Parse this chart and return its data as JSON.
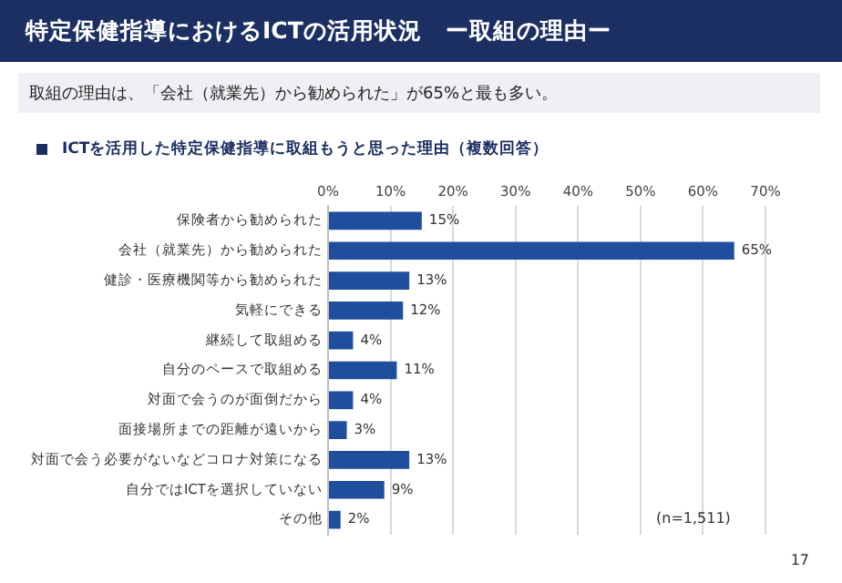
{
  "chart_data": {
    "type": "bar",
    "orientation": "horizontal",
    "title": "特定保健指導におけるICTの活用状況　ー取組の理由ー",
    "subtitle": "取組の理由は、「会社（就業先）から勧められた」が65%と最も多い。",
    "xlabel": "ICTを活用した特定保健指導に取組もうと思った理由（複数回答）",
    "categories": [
      "保険者から勧められた",
      "会社（就業先）から勧められた",
      "健診・医療機関等から勧められた",
      "気軽にできる",
      "継続して取組める",
      "自分のペースで取組める",
      "対面で会うのが面倒だから",
      "面接場所までの距離が遠いから",
      "対面で会う必要がないなどコロナ対策になる",
      "自分ではICTを選択していない",
      "その他"
    ],
    "values": [
      15,
      65,
      13,
      12,
      4,
      11,
      4,
      3,
      13,
      9,
      2
    ],
    "value_labels": [
      "15%",
      "65%",
      "13%",
      "12%",
      "4%",
      "11%",
      "4%",
      "3%",
      "13%",
      "9%",
      "2%"
    ],
    "color": "#1f4e9c",
    "xlim": [
      0,
      70
    ],
    "xticks": [
      {
        "value": 0,
        "label": "0%"
      },
      {
        "value": 10,
        "label": "10%"
      },
      {
        "value": 20,
        "label": "20%"
      },
      {
        "value": 30,
        "label": "30%"
      },
      {
        "value": 40,
        "label": "40%"
      },
      {
        "value": 50,
        "label": "50%"
      },
      {
        "value": 60,
        "label": "60%"
      },
      {
        "value": 70,
        "label": "70%"
      }
    ],
    "grid": "x",
    "annotations": [
      "(n=1,511)",
      "17"
    ]
  }
}
